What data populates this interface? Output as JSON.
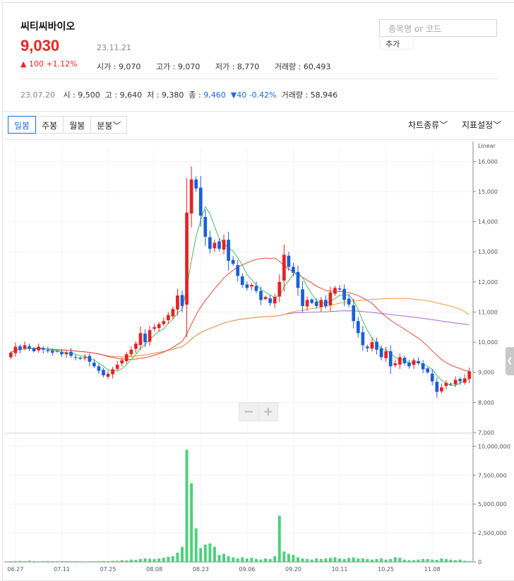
{
  "header": {
    "name": "씨티씨바이오",
    "price": "9,030",
    "change": "▲ 100 +1.12%",
    "date": "23.11.21",
    "open": "시가 : 9,070",
    "high": "고가 : 9,070",
    "low": "저가 : 8,770",
    "volume": "거래량 : 60,493"
  },
  "search": {
    "placeholder": "종목명 or 코드",
    "add_label": "추가"
  },
  "prev": {
    "date": "23.07.20",
    "open": "시 : 9,500",
    "high": "고 : 9,640",
    "low": "저 : 9,380",
    "close_label": "종 : ",
    "close": "9,460",
    "change": "▼40 -0.42%",
    "volume": "거래량 : 58,946"
  },
  "tabs": [
    "일봉",
    "주봉",
    "월봉",
    "분봉﹀"
  ],
  "active_tab": 0,
  "menu": {
    "chart_type": "차트종류﹀",
    "indicator": "지표설정﹀"
  },
  "zoom": {
    "minus": "−",
    "plus": "+"
  },
  "colors": {
    "up": "#e52222",
    "down": "#1b5fd6",
    "ma5": "#4cbf5a",
    "ma20": "#e3493b",
    "ma60": "#f09a3e",
    "ma120": "#a56be0",
    "volume": "#4cd07a"
  },
  "chart_data": {
    "type": "candlestick",
    "scale_label": "Linear",
    "price_range": [
      7000,
      16500
    ],
    "price_ticks": [
      7000,
      8000,
      9000,
      10000,
      11000,
      12000,
      13000,
      14000,
      15000,
      16000
    ],
    "price_tick_labels": [
      "7,000",
      "8,000",
      "9,000",
      "10,000",
      "11,000",
      "12,000",
      "13,000",
      "14,000",
      "15,000",
      "16,000"
    ],
    "volume_range": [
      0,
      11000000
    ],
    "volume_ticks": [
      0,
      2500000,
      5000000,
      7500000,
      10000000
    ],
    "volume_tick_labels": [
      "0",
      "2,500,000",
      "5,000,000",
      "7,500,000",
      "10,000,000"
    ],
    "x_labels": [
      {
        "i": 1,
        "label": "06.27"
      },
      {
        "i": 11,
        "label": "07.11"
      },
      {
        "i": 21,
        "label": "07.25"
      },
      {
        "i": 31,
        "label": "08.08"
      },
      {
        "i": 41,
        "label": "08.23"
      },
      {
        "i": 51,
        "label": "09.06"
      },
      {
        "i": 61,
        "label": "09.20"
      },
      {
        "i": 71,
        "label": "10.11"
      },
      {
        "i": 81,
        "label": "10.25"
      },
      {
        "i": 91,
        "label": "11.08"
      }
    ],
    "closes": [
      9650,
      9850,
      9750,
      9900,
      9800,
      9700,
      9850,
      9750,
      9700,
      9650,
      9700,
      9600,
      9650,
      9550,
      9500,
      9450,
      9500,
      9350,
      9200,
      9050,
      8900,
      8950,
      9100,
      9250,
      9400,
      9600,
      9750,
      9950,
      10300,
      10000,
      10400,
      10500,
      10600,
      10700,
      10900,
      11100,
      11550,
      11200,
      14300,
      15400,
      15100,
      14200,
      13500,
      13100,
      13300,
      13100,
      13400,
      12700,
      12600,
      12200,
      11900,
      11800,
      11900,
      11700,
      11400,
      11500,
      11300,
      11500,
      12000,
      12900,
      12500,
      12300,
      11800,
      11200,
      11400,
      11300,
      11200,
      11400,
      11200,
      11650,
      11800,
      11750,
      11400,
      11250,
      10700,
      10300,
      9900,
      9800,
      10000,
      9750,
      9500,
      9700,
      9200,
      9300,
      9500,
      9300,
      9200,
      9400,
      9300,
      9100,
      9000,
      8700,
      8350,
      8500,
      8650,
      8600,
      8750,
      8700,
      8800,
      9030
    ],
    "volumes": [
      60000,
      80000,
      90000,
      70000,
      100000,
      60000,
      50000,
      70000,
      80000,
      60000,
      50000,
      70000,
      60000,
      50000,
      60000,
      50000,
      40000,
      60000,
      50000,
      70000,
      80000,
      60000,
      90000,
      100000,
      150000,
      120000,
      200000,
      180000,
      250000,
      300000,
      280000,
      250000,
      300000,
      350000,
      450000,
      500000,
      800000,
      1300000,
      9700000,
      6800000,
      2900000,
      1200000,
      1500000,
      1600000,
      1300000,
      600000,
      700000,
      500000,
      400000,
      300000,
      400000,
      300000,
      350000,
      250000,
      200000,
      300000,
      250000,
      500000,
      4000000,
      900000,
      700000,
      600000,
      400000,
      300000,
      250000,
      200000,
      300000,
      250000,
      300000,
      350000,
      400000,
      300000,
      250000,
      350000,
      400000,
      300000,
      300000,
      250000,
      200000,
      250000,
      300000,
      200000,
      250000,
      400000,
      350000,
      200000,
      150000,
      150000,
      200000,
      250000,
      250000,
      200000,
      180000,
      300000,
      250000,
      200000,
      150000,
      200000,
      100000,
      60493
    ]
  }
}
